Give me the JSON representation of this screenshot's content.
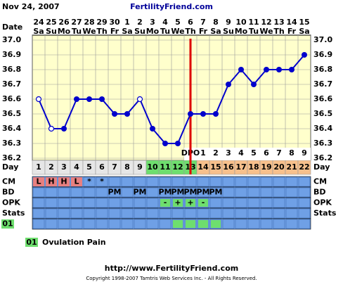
{
  "header": {
    "date": "Nov 24, 2007",
    "site": "FertilityFriend.com"
  },
  "chart_data": {
    "type": "line",
    "row_labels": {
      "date": "Date",
      "day": "Day",
      "cm": "CM",
      "bd": "BD",
      "opk": "OPK",
      "stats": "Stats",
      "symptom": "01"
    },
    "dates": [
      "24",
      "25",
      "26",
      "27",
      "28",
      "29",
      "30",
      "1",
      "2",
      "3",
      "4",
      "5",
      "6",
      "7",
      "8",
      "9",
      "10",
      "11",
      "12",
      "13",
      "14",
      "15"
    ],
    "weekdays": [
      "Sa",
      "Su",
      "Mo",
      "Tu",
      "We",
      "Th",
      "Fr",
      "Sa",
      "Su",
      "Mo",
      "Tu",
      "We",
      "Th",
      "Fr",
      "Sa",
      "Su",
      "Mo",
      "Tu",
      "We",
      "Th",
      "Fr",
      "Sa"
    ],
    "categories": [
      1,
      2,
      3,
      4,
      5,
      6,
      7,
      8,
      9,
      10,
      11,
      12,
      13,
      14,
      15,
      16,
      17,
      18,
      19,
      20,
      21,
      22
    ],
    "day_colors": [
      "#e6e6e6",
      "#e6e6e6",
      "#e6e6e6",
      "#e6e6e6",
      "#e6e6e6",
      "#e6e6e6",
      "#e6e6e6",
      "#e6e6e6",
      "#e6e6e6",
      "#6ede6e",
      "#6ede6e",
      "#6ede6e",
      "#6ede6e",
      "#f7c08c",
      "#f7c08c",
      "#f7c08c",
      "#f7c08c",
      "#f7c08c",
      "#f7c08c",
      "#f7c08c",
      "#f7c08c",
      "#f7c08c"
    ],
    "values": [
      36.6,
      36.4,
      36.4,
      36.6,
      36.6,
      36.6,
      36.5,
      36.5,
      36.6,
      36.4,
      36.3,
      36.3,
      36.5,
      36.5,
      36.5,
      36.7,
      36.8,
      36.7,
      36.8,
      36.8,
      36.8,
      36.9
    ],
    "open_markers": [
      true,
      true,
      false,
      false,
      false,
      false,
      false,
      false,
      true,
      false,
      false,
      false,
      false,
      false,
      false,
      false,
      false,
      false,
      false,
      false,
      false,
      false
    ],
    "color": "#0000cc",
    "ylim": [
      36.2,
      37.0
    ],
    "yticks": [
      {
        "value": 36.2,
        "label": "36.2"
      },
      36.3,
      36.4,
      36.5,
      36.6,
      36.7,
      36.8,
      36.9,
      {
        "value": 37,
        "label": "37.0"
      }
    ],
    "ovulation_index": 12,
    "ovulation_color": "#dd0000",
    "dpo_label": "DPO",
    "dpo": [
      null,
      null,
      null,
      null,
      null,
      null,
      null,
      null,
      null,
      null,
      null,
      null,
      null,
      1,
      2,
      3,
      4,
      5,
      6,
      7,
      8,
      9
    ],
    "cm": [
      "L",
      "H",
      "H",
      "L",
      "*",
      "*",
      null,
      null,
      null,
      null,
      null,
      null,
      null,
      null,
      null,
      null,
      null,
      null,
      null,
      null,
      null,
      null
    ],
    "bd": [
      null,
      null,
      null,
      null,
      null,
      null,
      "PM",
      null,
      "PM",
      null,
      "PM",
      "PM",
      "PM",
      "PM",
      "PM",
      null,
      null,
      null,
      null,
      null,
      null,
      null
    ],
    "opk": [
      null,
      null,
      null,
      null,
      null,
      null,
      null,
      null,
      null,
      null,
      "-",
      "+",
      "+",
      "-",
      null,
      null,
      null,
      null,
      null,
      null,
      null,
      null
    ],
    "symptom_01": [
      false,
      false,
      false,
      false,
      false,
      false,
      false,
      false,
      false,
      false,
      false,
      true,
      true,
      true,
      true,
      false,
      false,
      false,
      false,
      false,
      false,
      false
    ]
  },
  "legend": {
    "code": "01",
    "text": "Ovulation Pain"
  },
  "footer": {
    "url": "http://www.FertilityFriend.com",
    "copyright": "Copyright 1998-2007 Tamtris Web Services Inc. - All Rights Reserved."
  }
}
